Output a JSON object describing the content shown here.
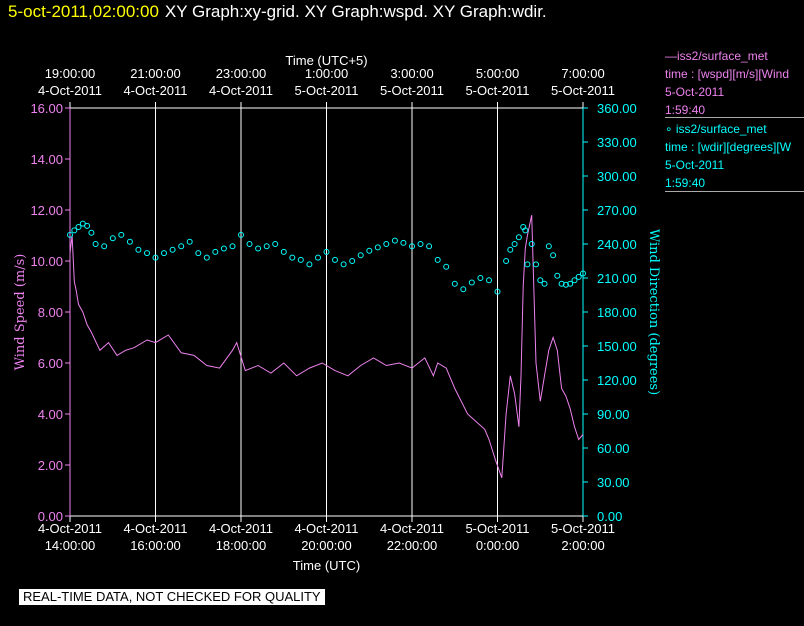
{
  "header": {
    "timestamp": "5-oct-2011,02:00:00",
    "title": "XY Graph:xy-grid.  XY Graph:wspd.  XY Graph:wdir."
  },
  "legend": [
    {
      "line1": "—iss2/surface_met",
      "line2": "time : [wspd][m/s][Wind",
      "line3": "5-Oct-2011",
      "line4": "1:59:40",
      "color": "#ee82ee"
    },
    {
      "line1": "∘ iss2/surface_met",
      "line2": "time : [wdir][degrees][W",
      "line3": "5-Oct-2011",
      "line4": "1:59:40",
      "color": "#00ffff"
    }
  ],
  "footer": "REAL-TIME DATA, NOT CHECKED FOR QUALITY",
  "chart_data": {
    "type": "line",
    "top_axis_title": "Time (UTC+5)",
    "bottom_axis_title": "Time (UTC)",
    "top_ticks": [
      {
        "time": "19:00:00",
        "date": "4-Oct-2011"
      },
      {
        "time": "21:00:00",
        "date": "4-Oct-2011"
      },
      {
        "time": "23:00:00",
        "date": "4-Oct-2011"
      },
      {
        "time": "1:00:00",
        "date": "5-Oct-2011"
      },
      {
        "time": "3:00:00",
        "date": "5-Oct-2011"
      },
      {
        "time": "5:00:00",
        "date": "5-Oct-2011"
      },
      {
        "time": "7:00:00",
        "date": "5-Oct-2011"
      }
    ],
    "bottom_ticks": [
      {
        "date": "4-Oct-2011",
        "time": "14:00:00"
      },
      {
        "date": "4-Oct-2011",
        "time": "16:00:00"
      },
      {
        "date": "4-Oct-2011",
        "time": "18:00:00"
      },
      {
        "date": "4-Oct-2011",
        "time": "20:00:00"
      },
      {
        "date": "4-Oct-2011",
        "time": "22:00:00"
      },
      {
        "date": "5-Oct-2011",
        "time": "0:00:00"
      },
      {
        "date": "5-Oct-2011",
        "time": "2:00:00"
      }
    ],
    "x_range_hours_utc": [
      14,
      26
    ],
    "grid": true,
    "left_axis": {
      "label": "Wind Speed (m/s)",
      "range": [
        0,
        16
      ],
      "ticks": [
        "0.00",
        "2.00",
        "4.00",
        "6.00",
        "8.00",
        "10.00",
        "12.00",
        "14.00",
        "16.00"
      ],
      "color": "#ee82ee"
    },
    "right_axis": {
      "label": "Wind Direction (degrees)",
      "range": [
        0,
        360
      ],
      "ticks": [
        "0.00",
        "30.00",
        "60.00",
        "90.00",
        "120.00",
        "150.00",
        "180.00",
        "210.00",
        "240.00",
        "270.00",
        "300.00",
        "330.00",
        "360.00"
      ],
      "color": "#00ffff"
    },
    "series": [
      {
        "name": "iss2/surface_met wspd",
        "axis": "left",
        "style": "line",
        "color": "#ee82ee",
        "x": [
          14.0,
          14.05,
          14.1,
          14.15,
          14.2,
          14.3,
          14.4,
          14.5,
          14.7,
          14.9,
          15.1,
          15.3,
          15.5,
          15.8,
          16.0,
          16.3,
          16.6,
          16.9,
          17.2,
          17.5,
          17.8,
          17.9,
          18.1,
          18.4,
          18.7,
          19.0,
          19.3,
          19.6,
          19.9,
          20.2,
          20.5,
          20.8,
          21.1,
          21.4,
          21.7,
          22.0,
          22.3,
          22.5,
          22.6,
          22.8,
          23.0,
          23.3,
          23.5,
          23.7,
          23.8,
          23.95,
          24.1,
          24.2,
          24.3,
          24.4,
          24.5,
          24.55,
          24.6,
          24.65,
          24.7,
          24.8,
          24.9,
          25.0,
          25.1,
          25.2,
          25.3,
          25.4,
          25.5,
          25.6,
          25.7,
          25.8,
          25.9,
          26.0
        ],
        "y": [
          10.3,
          11.0,
          9.2,
          8.8,
          8.3,
          8.0,
          7.5,
          7.2,
          6.5,
          6.8,
          6.3,
          6.5,
          6.6,
          6.9,
          6.8,
          7.1,
          6.4,
          6.3,
          5.9,
          5.8,
          6.5,
          6.8,
          5.7,
          5.9,
          5.6,
          6.0,
          5.5,
          5.8,
          6.0,
          5.7,
          5.5,
          5.9,
          6.2,
          5.9,
          6.0,
          5.8,
          6.2,
          5.5,
          6.0,
          5.8,
          5.0,
          4.0,
          3.7,
          3.4,
          3.0,
          2.2,
          1.5,
          4.0,
          5.5,
          4.8,
          3.5,
          5.5,
          9.0,
          10.5,
          11.0,
          11.8,
          6.0,
          4.5,
          5.5,
          6.5,
          7.0,
          6.5,
          5.0,
          4.7,
          4.2,
          3.5,
          3.0,
          3.2
        ]
      },
      {
        "name": "iss2/surface_met wdir",
        "axis": "right",
        "style": "markers",
        "color": "#00ffff",
        "x": [
          14.0,
          14.1,
          14.2,
          14.3,
          14.4,
          14.5,
          14.6,
          14.8,
          15.0,
          15.2,
          15.4,
          15.6,
          15.8,
          16.0,
          16.2,
          16.4,
          16.6,
          16.8,
          17.0,
          17.2,
          17.4,
          17.6,
          17.8,
          18.0,
          18.2,
          18.4,
          18.6,
          18.8,
          19.0,
          19.2,
          19.4,
          19.6,
          19.8,
          20.0,
          20.2,
          20.4,
          20.6,
          20.8,
          21.0,
          21.2,
          21.4,
          21.6,
          21.8,
          22.0,
          22.2,
          22.4,
          22.6,
          22.8,
          23.0,
          23.2,
          23.4,
          23.6,
          23.8,
          24.0,
          24.2,
          24.3,
          24.4,
          24.5,
          24.6,
          24.65,
          24.7,
          24.8,
          24.9,
          25.0,
          25.1,
          25.2,
          25.3,
          25.4,
          25.5,
          25.6,
          25.7,
          25.8,
          25.9,
          26.0
        ],
        "y": [
          248,
          252,
          255,
          258,
          256,
          250,
          240,
          238,
          245,
          248,
          242,
          235,
          232,
          228,
          232,
          235,
          238,
          242,
          232,
          228,
          233,
          236,
          238,
          248,
          240,
          236,
          238,
          240,
          233,
          228,
          226,
          222,
          228,
          233,
          226,
          222,
          225,
          230,
          234,
          237,
          240,
          243,
          241,
          238,
          240,
          238,
          226,
          220,
          205,
          200,
          206,
          210,
          208,
          198,
          225,
          235,
          240,
          246,
          255,
          252,
          222,
          240,
          222,
          208,
          205,
          238,
          230,
          212,
          205,
          204,
          205,
          208,
          211,
          214
        ]
      }
    ]
  }
}
